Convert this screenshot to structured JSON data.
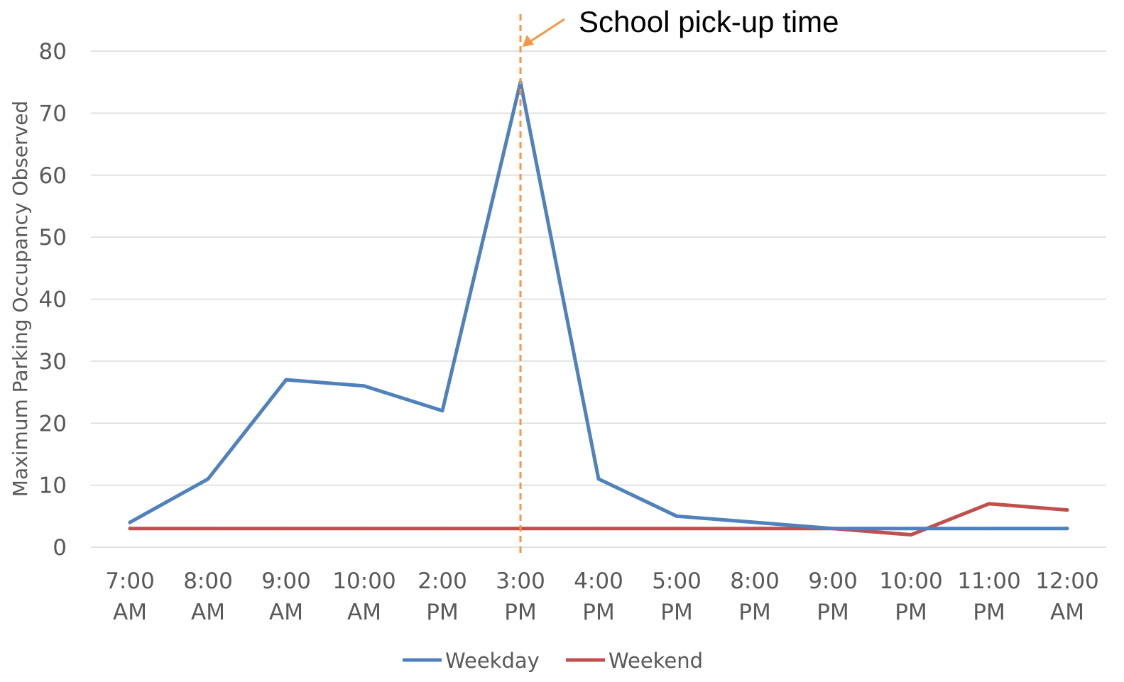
{
  "chart_data": {
    "type": "line",
    "title": "",
    "xlabel": "",
    "ylabel": "Maximum Parking Occupancy Observed",
    "ylim": [
      0,
      80
    ],
    "yticks": [
      0,
      10,
      20,
      30,
      40,
      50,
      60,
      70,
      80
    ],
    "grid": true,
    "legend_position": "bottom",
    "categories": [
      [
        "7:00",
        "AM"
      ],
      [
        "8:00",
        "AM"
      ],
      [
        "9:00",
        "AM"
      ],
      [
        "10:00",
        "AM"
      ],
      [
        "2:00",
        "PM"
      ],
      [
        "3:00",
        "PM"
      ],
      [
        "4:00",
        "PM"
      ],
      [
        "5:00",
        "PM"
      ],
      [
        "8:00",
        "PM"
      ],
      [
        "9:00",
        "PM"
      ],
      [
        "10:00",
        "PM"
      ],
      [
        "11:00",
        "PM"
      ],
      [
        "12:00",
        "AM"
      ]
    ],
    "series": [
      {
        "name": "Weekday",
        "color": "#4F81BD",
        "values": [
          4,
          11,
          27,
          26,
          22,
          75,
          11,
          5,
          4,
          3,
          3,
          3,
          3
        ]
      },
      {
        "name": "Weekend",
        "color": "#C0504D",
        "values": [
          3,
          3,
          3,
          3,
          3,
          3,
          3,
          3,
          3,
          3,
          2,
          7,
          6
        ]
      }
    ],
    "annotation": {
      "text": "School pick-up time",
      "category_index": 5,
      "color": "#F79646"
    }
  }
}
